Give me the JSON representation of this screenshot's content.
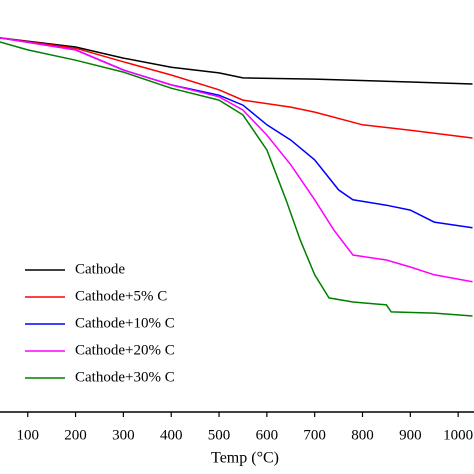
{
  "chart_data": {
    "type": "line",
    "x_label": "Temp (°C)",
    "xlim": [
      42,
      1030
    ],
    "xticks": [
      100,
      200,
      300,
      400,
      500,
      600,
      700,
      800,
      900,
      1000
    ],
    "ylim": [
      0,
      100
    ],
    "legend": "lower left",
    "series": [
      {
        "name": "Cathode",
        "color": "#000000",
        "x": [
          42,
          200,
          300,
          400,
          500,
          550,
          700,
          900,
          1030
        ],
        "values": [
          90.8,
          88.6,
          85.9,
          83.7,
          82.3,
          81.1,
          80.8,
          80.1,
          79.6
        ]
      },
      {
        "name": "Cathode+5% C",
        "color": "#ff0000",
        "x": [
          42,
          200,
          300,
          400,
          500,
          550,
          650,
          700,
          800,
          900,
          1030
        ],
        "values": [
          90.8,
          88.3,
          85,
          81.8,
          78.2,
          75.7,
          74,
          72.8,
          69.7,
          68.4,
          66.5
        ]
      },
      {
        "name": "Cathode+10% C",
        "color": "#0000ff",
        "x": [
          42,
          200,
          300,
          400,
          500,
          550,
          600,
          650,
          700,
          750,
          780,
          850,
          900,
          950,
          1030
        ],
        "values": [
          90.8,
          87.9,
          83,
          79.4,
          76.9,
          74.5,
          69.7,
          66,
          61.2,
          53.9,
          51.5,
          50.2,
          49,
          46.1,
          44.7
        ]
      },
      {
        "name": "Cathode+20% C",
        "color": "#ff00ff",
        "x": [
          42,
          200,
          300,
          400,
          500,
          550,
          600,
          650,
          700,
          740,
          780,
          850,
          900,
          950,
          1030
        ],
        "values": [
          90.8,
          87.9,
          83,
          79.4,
          76.5,
          73.3,
          67.2,
          60,
          51.5,
          44.2,
          38.1,
          36.9,
          35.2,
          33.3,
          31.6
        ]
      },
      {
        "name": "Cathode+30% C",
        "color": "#008000",
        "x": [
          42,
          100,
          200,
          300,
          400,
          500,
          550,
          600,
          640,
          670,
          700,
          730,
          780,
          850,
          860,
          950,
          1030
        ],
        "values": [
          89.8,
          87.9,
          85.4,
          82.5,
          78.6,
          75.7,
          72.1,
          63.6,
          51.5,
          41.7,
          33.3,
          27.7,
          26.7,
          26,
          24.3,
          24,
          23.3
        ]
      }
    ]
  }
}
